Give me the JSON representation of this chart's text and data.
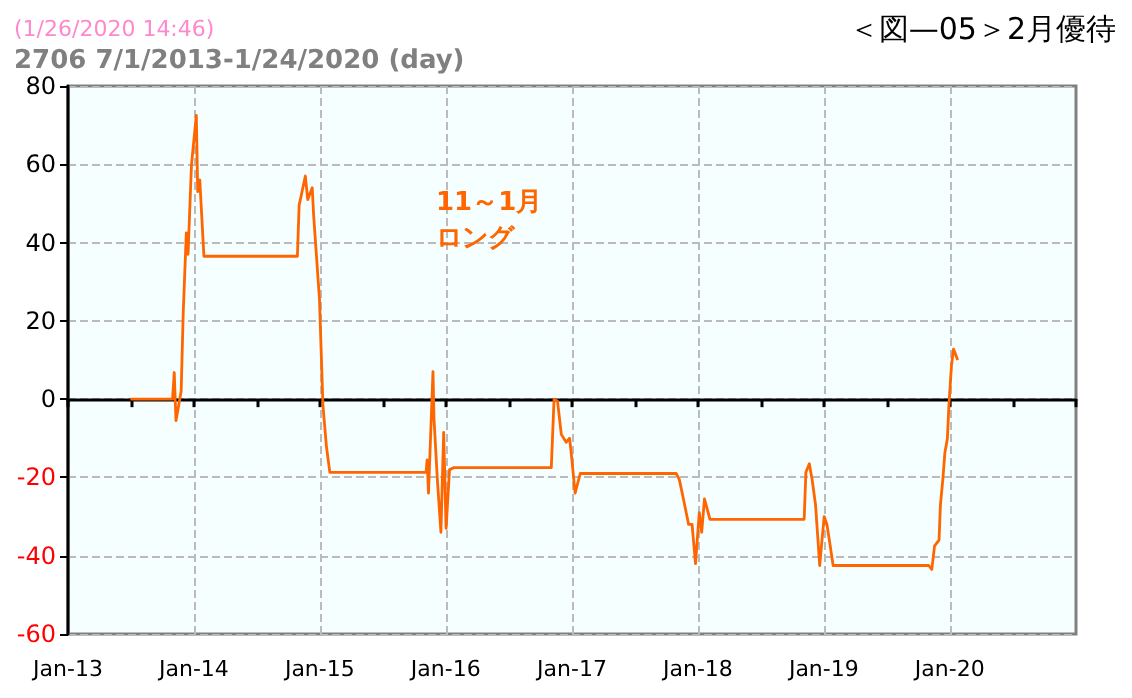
{
  "chart_data": {
    "type": "line",
    "title": "2706 7/1/2013-1/24/2020 (day)",
    "subtitle": "(1/26/2020 14:46)",
    "annotations": [
      "＜図—05＞2月優待",
      "11～1月",
      "ロング"
    ],
    "x": [
      "2013-07-01",
      "2013-10-31",
      "2013-11-05",
      "2013-11-10",
      "2013-11-25",
      "2013-12-01",
      "2013-12-10",
      "2013-12-15",
      "2013-12-25",
      "2014-01-08",
      "2014-01-12",
      "2014-01-18",
      "2014-01-30",
      "2014-10-28",
      "2014-11-02",
      "2014-11-20",
      "2014-11-27",
      "2014-12-10",
      "2014-12-14",
      "2014-12-31",
      "2015-01-10",
      "2015-01-20",
      "2015-01-30",
      "2015-11-05",
      "2015-11-08",
      "2015-11-12",
      "2015-11-25",
      "2015-11-28",
      "2015-12-08",
      "2015-12-18",
      "2015-12-26",
      "2016-01-02",
      "2016-01-12",
      "2016-01-25",
      "2016-11-02",
      "2016-11-10",
      "2016-11-20",
      "2016-12-01",
      "2016-12-15",
      "2016-12-25",
      "2016-12-30",
      "2017-01-10",
      "2017-01-25",
      "2017-10-30",
      "2017-11-08",
      "2017-11-20",
      "2017-12-05",
      "2017-12-15",
      "2017-12-25",
      "2018-01-05",
      "2018-01-12",
      "2018-01-20",
      "2018-02-05",
      "2018-11-05",
      "2018-11-10",
      "2018-11-20",
      "2018-11-28",
      "2018-12-08",
      "2018-12-20",
      "2019-01-02",
      "2019-01-10",
      "2019-01-18",
      "2019-01-28",
      "2019-11-01",
      "2019-11-10",
      "2019-11-18",
      "2019-12-01",
      "2019-12-05",
      "2019-12-12",
      "2019-12-18",
      "2019-12-25",
      "2019-12-30",
      "2020-01-06",
      "2020-01-12",
      "2020-01-24"
    ],
    "series": [
      {
        "color": "#ff6600",
        "values": [
          0,
          0,
          6.8,
          -5.5,
          2,
          22,
          42.5,
          37,
          60,
          72.5,
          53,
          56,
          36.5,
          36.5,
          49.5,
          57,
          51,
          54,
          47,
          25.5,
          -1.5,
          -12,
          -18.7,
          -18.7,
          -15.5,
          -24,
          7,
          -5,
          -21,
          -34,
          -8.5,
          -33,
          -18,
          -17.5,
          -17.5,
          0,
          -0.5,
          -9,
          -11,
          -10,
          -14,
          -24,
          -19,
          -19,
          -20.5,
          -25.5,
          -32,
          -32,
          -42,
          -29,
          -34,
          -25.5,
          -30.7,
          -30.7,
          -18.7,
          -16.5,
          -20.5,
          -27,
          -42.5,
          -30,
          -32,
          -36.6,
          -42.5,
          -42.5,
          -43.5,
          -37.5,
          -36,
          -27,
          -20.5,
          -13.6,
          -10.2,
          -0.9,
          8.5,
          12.8,
          10
        ]
      }
    ],
    "xlim": [
      "2013-01-01",
      "2021-01-01"
    ],
    "xticks": [
      {
        "value": "2013-01-01",
        "label": "Jan-13"
      },
      {
        "value": "2014-01-01",
        "label": "Jan-14"
      },
      {
        "value": "2015-01-01",
        "label": "Jan-15"
      },
      {
        "value": "2016-01-01",
        "label": "Jan-16"
      },
      {
        "value": "2017-01-01",
        "label": "Jan-17"
      },
      {
        "value": "2018-01-01",
        "label": "Jan-18"
      },
      {
        "value": "2019-01-01",
        "label": "Jan-19"
      },
      {
        "value": "2020-01-01",
        "label": "Jan-20"
      }
    ],
    "ylim": [
      -60,
      80
    ],
    "yticks": [
      -60,
      -40,
      -20,
      0,
      20,
      40,
      60,
      80
    ],
    "grid": true,
    "marker": "none",
    "line_style": "solid"
  }
}
